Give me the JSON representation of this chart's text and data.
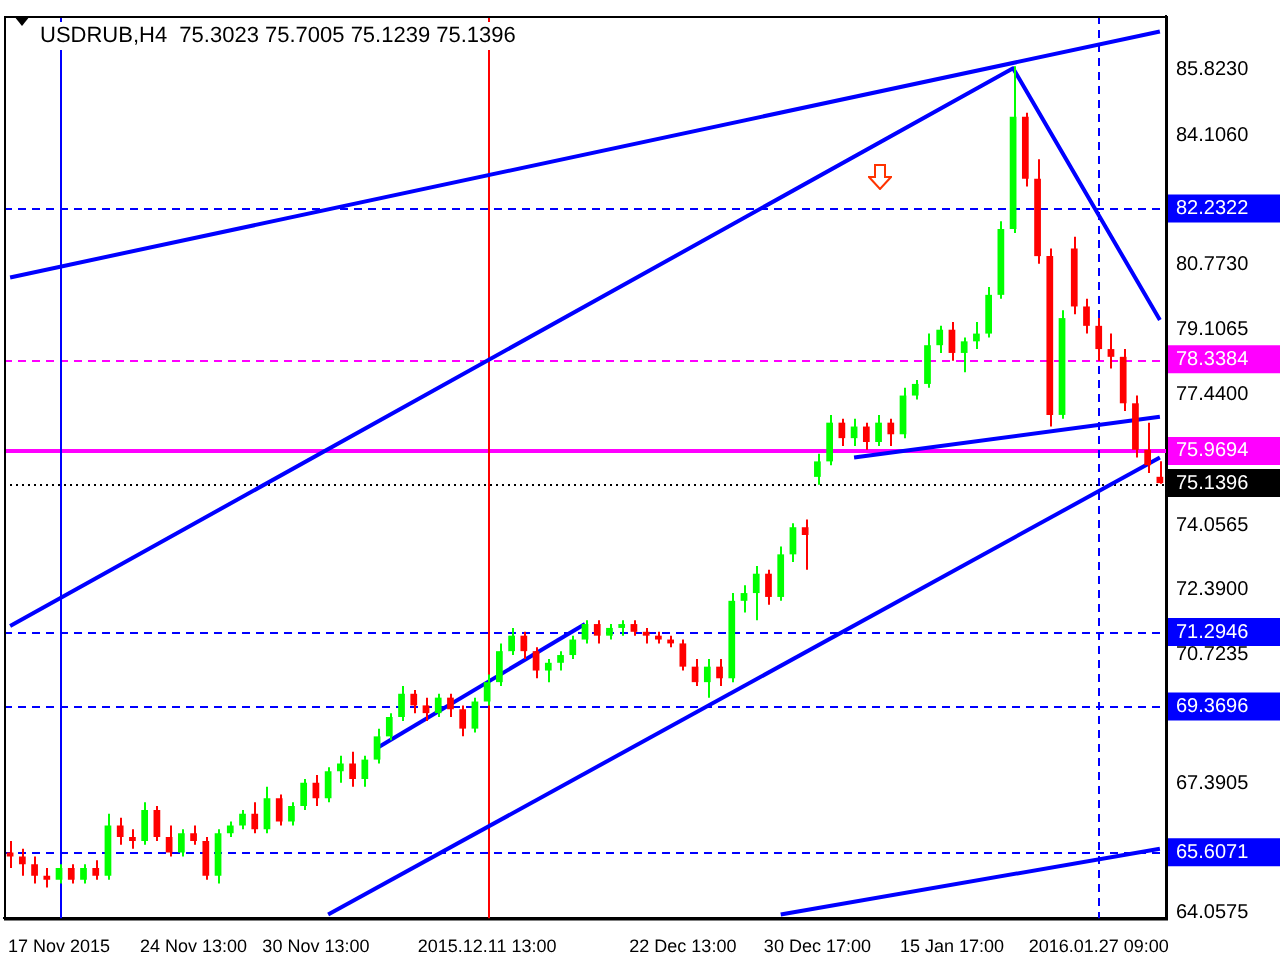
{
  "chart_data": {
    "type": "candlestick",
    "title": "USDRUB,H4  75.3023 75.7005 75.1239 75.1396",
    "categories": [
      null,
      null,
      null,
      null,
      "17 Nov 2015",
      null,
      null,
      null,
      null,
      null,
      null,
      null,
      null,
      null,
      null,
      "24 Nov 13:00",
      null,
      null,
      null,
      null,
      null,
      null,
      null,
      null,
      null,
      "30 Nov 13:00",
      null,
      null,
      null,
      null,
      null,
      null,
      null,
      null,
      null,
      null,
      null,
      null,
      null,
      "2015.12.11 13:00",
      null,
      null,
      null,
      null,
      null,
      null,
      null,
      null,
      null,
      null,
      null,
      null,
      null,
      null,
      null,
      "22 Dec 13:00",
      null,
      null,
      null,
      null,
      null,
      null,
      null,
      null,
      null,
      null,
      "30 Dec 17:00",
      null,
      null,
      null,
      null,
      null,
      null,
      null,
      null,
      null,
      null,
      "15 Jan 17:00",
      null,
      null,
      null,
      null,
      null,
      null,
      null,
      null,
      null,
      null,
      null,
      "2016.01.27 09:00",
      null,
      null,
      null,
      null,
      null
    ],
    "ohlc": [
      [
        65.6,
        65.9,
        65.2,
        65.5
      ],
      [
        65.5,
        65.7,
        65.0,
        65.3
      ],
      [
        65.3,
        65.5,
        64.8,
        65.0
      ],
      [
        65.0,
        65.2,
        64.7,
        64.9
      ],
      [
        64.9,
        65.3,
        64.8,
        65.2
      ],
      [
        65.2,
        65.3,
        64.8,
        64.9
      ],
      [
        64.9,
        65.3,
        64.8,
        65.2
      ],
      [
        65.2,
        65.4,
        64.9,
        65.0
      ],
      [
        65.0,
        66.6,
        64.9,
        66.3
      ],
      [
        66.3,
        66.5,
        65.8,
        66.0
      ],
      [
        66.0,
        66.2,
        65.7,
        65.9
      ],
      [
        65.9,
        66.9,
        65.8,
        66.7
      ],
      [
        66.7,
        66.8,
        65.9,
        66.0
      ],
      [
        66.0,
        66.3,
        65.5,
        65.6
      ],
      [
        65.6,
        66.2,
        65.5,
        66.1
      ],
      [
        66.1,
        66.3,
        65.8,
        65.9
      ],
      [
        65.9,
        66.0,
        64.9,
        65.0
      ],
      [
        65.0,
        66.2,
        64.8,
        66.1
      ],
      [
        66.1,
        66.4,
        66.0,
        66.3
      ],
      [
        66.3,
        66.7,
        66.2,
        66.6
      ],
      [
        66.6,
        66.9,
        66.1,
        66.2
      ],
      [
        66.2,
        67.3,
        66.1,
        67.0
      ],
      [
        67.0,
        67.1,
        66.3,
        66.4
      ],
      [
        66.4,
        66.9,
        66.3,
        66.8
      ],
      [
        66.8,
        67.5,
        66.7,
        67.4
      ],
      [
        67.4,
        67.6,
        66.8,
        67.0
      ],
      [
        67.0,
        67.8,
        66.9,
        67.7
      ],
      [
        67.7,
        68.1,
        67.4,
        67.9
      ],
      [
        67.9,
        68.2,
        67.3,
        67.5
      ],
      [
        67.5,
        68.1,
        67.3,
        68.0
      ],
      [
        68.0,
        68.8,
        67.9,
        68.6
      ],
      [
        68.6,
        69.2,
        68.5,
        69.1
      ],
      [
        69.1,
        69.9,
        69.0,
        69.7
      ],
      [
        69.7,
        69.8,
        69.2,
        69.4
      ],
      [
        69.4,
        69.6,
        69.0,
        69.2
      ],
      [
        69.2,
        69.7,
        69.1,
        69.6
      ],
      [
        69.6,
        69.7,
        69.1,
        69.3
      ],
      [
        69.3,
        69.4,
        68.6,
        68.8
      ],
      [
        68.8,
        69.6,
        68.7,
        69.5
      ],
      [
        69.5,
        70.2,
        69.4,
        70.0
      ],
      [
        70.0,
        71.0,
        69.9,
        70.8
      ],
      [
        70.8,
        71.4,
        70.7,
        71.2
      ],
      [
        71.2,
        71.3,
        70.6,
        70.8
      ],
      [
        70.8,
        70.9,
        70.1,
        70.3
      ],
      [
        70.3,
        70.6,
        70.0,
        70.5
      ],
      [
        70.5,
        70.8,
        70.3,
        70.7
      ],
      [
        70.7,
        71.2,
        70.6,
        71.1
      ],
      [
        71.1,
        71.6,
        71.0,
        71.5
      ],
      [
        71.5,
        71.6,
        71.0,
        71.2
      ],
      [
        71.2,
        71.5,
        71.1,
        71.4
      ],
      [
        71.4,
        71.6,
        71.2,
        71.5
      ],
      [
        71.5,
        71.6,
        71.2,
        71.3
      ],
      [
        71.3,
        71.4,
        71.0,
        71.2
      ],
      [
        71.2,
        71.3,
        71.0,
        71.1
      ],
      [
        71.1,
        71.2,
        70.9,
        71.0
      ],
      [
        71.0,
        71.1,
        70.3,
        70.4
      ],
      [
        70.4,
        70.6,
        69.9,
        70.0
      ],
      [
        70.0,
        70.6,
        69.6,
        70.4
      ],
      [
        70.4,
        70.6,
        69.9,
        70.1
      ],
      [
        70.1,
        72.3,
        70.0,
        72.1
      ],
      [
        72.1,
        72.5,
        71.8,
        72.3
      ],
      [
        72.3,
        73.0,
        71.6,
        72.8
      ],
      [
        72.8,
        72.9,
        72.0,
        72.2
      ],
      [
        72.2,
        73.5,
        72.1,
        73.3
      ],
      [
        73.3,
        74.1,
        73.1,
        74.0
      ],
      [
        74.0,
        74.2,
        72.9,
        73.8
      ],
      [
        75.3,
        75.9,
        75.1,
        75.7
      ],
      [
        75.7,
        76.9,
        75.6,
        76.7
      ],
      [
        76.7,
        76.8,
        76.1,
        76.3
      ],
      [
        76.3,
        76.8,
        76.1,
        76.6
      ],
      [
        76.6,
        76.7,
        76.0,
        76.2
      ],
      [
        76.2,
        76.9,
        76.1,
        76.7
      ],
      [
        76.7,
        76.8,
        76.1,
        76.4
      ],
      [
        76.4,
        77.6,
        76.3,
        77.4
      ],
      [
        77.4,
        77.8,
        77.3,
        77.7
      ],
      [
        77.7,
        79.0,
        77.6,
        78.7
      ],
      [
        78.7,
        79.2,
        78.5,
        79.1
      ],
      [
        79.1,
        79.3,
        78.3,
        78.5
      ],
      [
        78.5,
        78.9,
        78.0,
        78.8
      ],
      [
        78.8,
        79.3,
        78.6,
        79.0
      ],
      [
        79.0,
        80.2,
        78.9,
        80.0
      ],
      [
        80.0,
        81.9,
        79.9,
        81.7
      ],
      [
        81.7,
        85.9,
        81.6,
        84.6
      ],
      [
        84.6,
        84.7,
        82.8,
        83.0
      ],
      [
        83.0,
        83.5,
        80.8,
        81.0
      ],
      [
        81.0,
        81.2,
        76.6,
        76.9
      ],
      [
        76.9,
        79.6,
        76.8,
        79.4
      ],
      [
        81.2,
        81.5,
        79.5,
        79.7
      ],
      [
        79.7,
        79.9,
        79.0,
        79.2
      ],
      [
        79.2,
        79.4,
        78.3,
        78.6
      ],
      [
        78.6,
        79.0,
        78.1,
        78.4
      ],
      [
        78.4,
        78.6,
        77.0,
        77.2
      ],
      [
        77.2,
        77.4,
        75.8,
        76.0
      ],
      [
        76.0,
        76.7,
        75.4,
        75.6
      ],
      [
        75.3023,
        75.7005,
        75.1239,
        75.1396
      ]
    ],
    "series": [
      {
        "type": "line",
        "color": "#0000ff",
        "values": [
          80.45,
          null,
          null,
          null,
          null,
          null,
          null,
          null,
          null,
          null,
          null,
          null,
          null,
          null,
          null,
          null,
          null,
          null,
          null,
          null,
          null,
          null,
          null,
          null,
          null,
          null,
          null,
          null,
          null,
          null,
          null,
          null,
          null,
          null,
          null,
          null,
          null,
          null,
          null,
          null,
          null,
          null,
          null,
          null,
          null,
          null,
          null,
          null,
          null,
          null,
          null,
          null,
          null,
          null,
          null,
          null,
          null,
          null,
          null,
          null,
          null,
          null,
          null,
          null,
          null,
          null,
          null,
          null,
          null,
          null,
          null,
          null,
          null,
          null,
          null,
          null,
          null,
          null,
          null,
          null,
          null,
          null,
          null,
          null,
          null,
          null,
          null,
          null,
          null,
          null,
          null,
          null,
          null,
          null,
          86.8
        ]
      },
      {
        "type": "line",
        "color": "#0000ff",
        "values": [
          71.45,
          null,
          null,
          null,
          null,
          null,
          null,
          null,
          null,
          null,
          null,
          null,
          null,
          null,
          null,
          null,
          null,
          null,
          null,
          null,
          null,
          null,
          null,
          null,
          null,
          null,
          null,
          null,
          null,
          null,
          null,
          null,
          null,
          null,
          null,
          null,
          null,
          null,
          null,
          null,
          null,
          null,
          null,
          null,
          null,
          null,
          null,
          null,
          null,
          null,
          null,
          null,
          null,
          null,
          null,
          null,
          null,
          null,
          null,
          null,
          null,
          null,
          null,
          null,
          null,
          null,
          null,
          null,
          null,
          null,
          null,
          null,
          null,
          null,
          null,
          null,
          null,
          null,
          null,
          null,
          null,
          null,
          85.85,
          null,
          null,
          null,
          null,
          null,
          null,
          null,
          null,
          null,
          null,
          null,
          79.35
        ]
      },
      {
        "type": "line",
        "color": "#0000ff",
        "values": [
          null,
          null,
          null,
          null,
          null,
          null,
          null,
          null,
          null,
          null,
          null,
          null,
          null,
          null,
          null,
          null,
          null,
          null,
          null,
          null,
          null,
          null,
          null,
          null,
          null,
          null,
          64.0,
          null,
          null,
          null,
          null,
          null,
          null,
          null,
          null,
          null,
          null,
          null,
          null,
          null,
          null,
          null,
          null,
          null,
          null,
          null,
          null,
          null,
          null,
          null,
          null,
          null,
          null,
          null,
          null,
          null,
          null,
          null,
          null,
          null,
          null,
          null,
          null,
          null,
          null,
          null,
          null,
          null,
          null,
          null,
          null,
          null,
          null,
          null,
          null,
          null,
          null,
          null,
          null,
          null,
          null,
          null,
          null,
          null,
          null,
          null,
          null,
          null,
          null,
          null,
          null,
          null,
          null,
          null,
          75.8
        ]
      },
      {
        "type": "line",
        "color": "#0000ff",
        "values": [
          null,
          null,
          null,
          null,
          null,
          null,
          null,
          null,
          null,
          null,
          null,
          null,
          null,
          null,
          null,
          null,
          null,
          null,
          null,
          null,
          null,
          null,
          null,
          null,
          null,
          null,
          null,
          null,
          null,
          null,
          null,
          null,
          null,
          null,
          null,
          null,
          null,
          null,
          null,
          null,
          null,
          null,
          null,
          null,
          null,
          null,
          null,
          null,
          null,
          null,
          null,
          null,
          null,
          null,
          null,
          null,
          null,
          null,
          null,
          null,
          null,
          null,
          null,
          64.0,
          null,
          null,
          null,
          null,
          null,
          null,
          null,
          null,
          null,
          null,
          null,
          null,
          null,
          null,
          null,
          null,
          null,
          null,
          null,
          null,
          null,
          null,
          null,
          null,
          null,
          null,
          null,
          null,
          null,
          null,
          65.7
        ]
      },
      {
        "type": "line",
        "color": "#0000ff",
        "values": [
          null,
          null,
          null,
          null,
          null,
          null,
          null,
          null,
          null,
          null,
          null,
          null,
          null,
          null,
          null,
          null,
          null,
          null,
          null,
          null,
          null,
          null,
          null,
          null,
          null,
          null,
          null,
          null,
          null,
          null,
          null,
          null,
          null,
          null,
          null,
          null,
          null,
          null,
          null,
          null,
          null,
          null,
          null,
          null,
          null,
          null,
          null,
          null,
          null,
          null,
          null,
          null,
          null,
          null,
          null,
          null,
          null,
          null,
          null,
          null,
          null,
          null,
          null,
          null,
          null,
          null,
          null,
          null,
          null,
          75.8,
          null,
          null,
          null,
          null,
          null,
          null,
          null,
          null,
          null,
          null,
          null,
          null,
          null,
          null,
          null,
          null,
          null,
          null,
          null,
          null,
          null,
          null,
          null,
          null,
          76.85
        ]
      },
      {
        "type": "line",
        "color": "#0000ff",
        "values": [
          null,
          null,
          null,
          null,
          null,
          null,
          null,
          null,
          null,
          null,
          null,
          null,
          null,
          null,
          null,
          null,
          null,
          null,
          null,
          null,
          null,
          null,
          null,
          null,
          null,
          null,
          null,
          null,
          null,
          null,
          68.3,
          null,
          null,
          null,
          null,
          null,
          null,
          null,
          null,
          null,
          null,
          null,
          null,
          null,
          null,
          null,
          null,
          71.5,
          null,
          null,
          null,
          null,
          null,
          null,
          null,
          null,
          null,
          null,
          null,
          null,
          null,
          null,
          null,
          null,
          null,
          null,
          null,
          null,
          null,
          null,
          null,
          null,
          null,
          null,
          null,
          null,
          null,
          null,
          null,
          null,
          null,
          null,
          null,
          null,
          null,
          null,
          null,
          null,
          null,
          null,
          null,
          null,
          null,
          null,
          null
        ]
      }
    ],
    "line_style": "solid",
    "ylim": [
      63.9,
      87.2
    ],
    "yticks": [
      {
        "value": 85.823,
        "label": "85.8230"
      },
      {
        "value": 84.106,
        "label": "84.1060"
      },
      {
        "value": 80.773,
        "label": "80.7730"
      },
      {
        "value": 79.1065,
        "label": "79.1065"
      },
      {
        "value": 77.44,
        "label": "77.4400"
      },
      {
        "value": 74.0565,
        "label": "74.0565"
      },
      {
        "value": 72.39,
        "label": "72.3900"
      },
      {
        "value": 70.7235,
        "label": "70.7235"
      },
      {
        "value": 67.3905,
        "label": "67.3905"
      },
      {
        "value": 64.0575,
        "label": "64.0575"
      }
    ],
    "ref_lines": [
      {
        "axis": "y",
        "value": 82.2322,
        "label": "82.2322",
        "color": "#0000ff",
        "line_style": "dashed"
      },
      {
        "axis": "y",
        "value": 78.3384,
        "label": "78.3384",
        "color": "#ff00ff",
        "line_style": "dashed"
      },
      {
        "axis": "y",
        "value": 75.9694,
        "label": "75.9694",
        "color": "#ff00ff",
        "line_style": "solid"
      },
      {
        "axis": "y",
        "value": 75.1396,
        "label": "75.1396",
        "color": "#000000",
        "line_style": "dotted"
      },
      {
        "axis": "y",
        "value": 71.2946,
        "label": "71.2946",
        "color": "#0000ff",
        "line_style": "dashed"
      },
      {
        "axis": "y",
        "value": 69.3696,
        "label": "69.3696",
        "color": "#0000ff",
        "line_style": "dashed"
      },
      {
        "axis": "y",
        "value": 65.6071,
        "label": "65.6071",
        "color": "#0000ff",
        "line_style": "dashed"
      },
      {
        "axis": "x",
        "value": "17 Nov 2015",
        "color": "#0000ff",
        "line_style": "solid"
      },
      {
        "axis": "x",
        "value": "2015.12.11 13:00",
        "color": "#ff0000",
        "line_style": "solid"
      },
      {
        "axis": "x",
        "value": "2016.01.27 09:00",
        "color": "#0000ff",
        "line_style": "dashed"
      }
    ],
    "grid": false,
    "legend": false
  }
}
